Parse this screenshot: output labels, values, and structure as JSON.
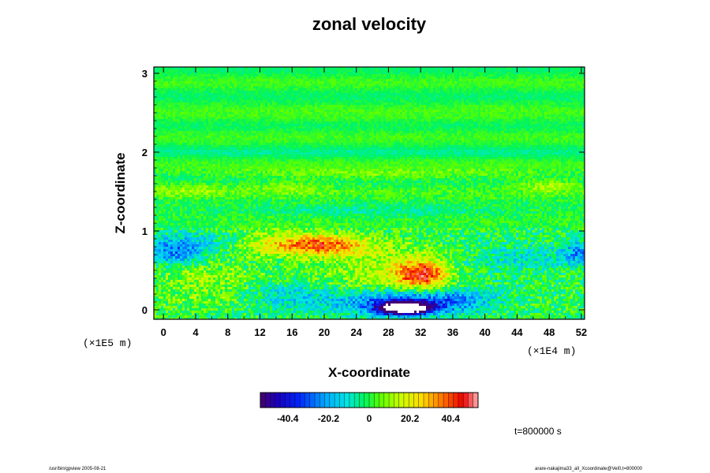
{
  "chart_data": {
    "type": "heatmap",
    "title": "zonal velocity",
    "xlabel": "X-coordinate",
    "ylabel": "Z-coordinate",
    "x_unit_label": "(×1E4 m)",
    "y_unit_label": "(×1E5 m)",
    "x_ticks": [
      "0",
      "4",
      "8",
      "12",
      "16",
      "20",
      "24",
      "28",
      "32",
      "36",
      "40",
      "44",
      "48",
      "52"
    ],
    "y_ticks": [
      "0",
      "1",
      "2",
      "3"
    ],
    "xlim": [
      -1.2,
      52.4
    ],
    "ylim": [
      -0.12,
      3.08
    ],
    "colorbar": {
      "ticks": [
        "-40.4",
        "-20.2",
        "0",
        "20.2",
        "40.4"
      ],
      "range": [
        -54,
        54
      ]
    },
    "features": [
      {
        "description": "strong negative core",
        "x": 30,
        "z": 0.0,
        "value": -60
      },
      {
        "description": "negative band near surface",
        "x": 30,
        "z": 0.08,
        "value": -32
      },
      {
        "description": "positive maximum",
        "x": 32,
        "z": 0.45,
        "value": 40
      },
      {
        "description": "positive patch",
        "x": 20,
        "z": 0.8,
        "value": 30
      },
      {
        "description": "negative patch left edge",
        "x": 2,
        "z": 0.75,
        "value": -25
      },
      {
        "description": "negative patch right edge",
        "x": 52,
        "z": 0.75,
        "value": -20
      },
      {
        "description": "weak positive band",
        "x": 25,
        "z": 1.7,
        "value": 10
      },
      {
        "description": "upper layer",
        "x": 26,
        "z": 2.5,
        "value": 0
      }
    ],
    "time_label": "t=800000 s"
  },
  "footer": {
    "left": "/usr/bin/gpview 2005-08-21",
    "right": "arare-nakajima33_all_Xcoordinate@Vel0,t=800000"
  }
}
